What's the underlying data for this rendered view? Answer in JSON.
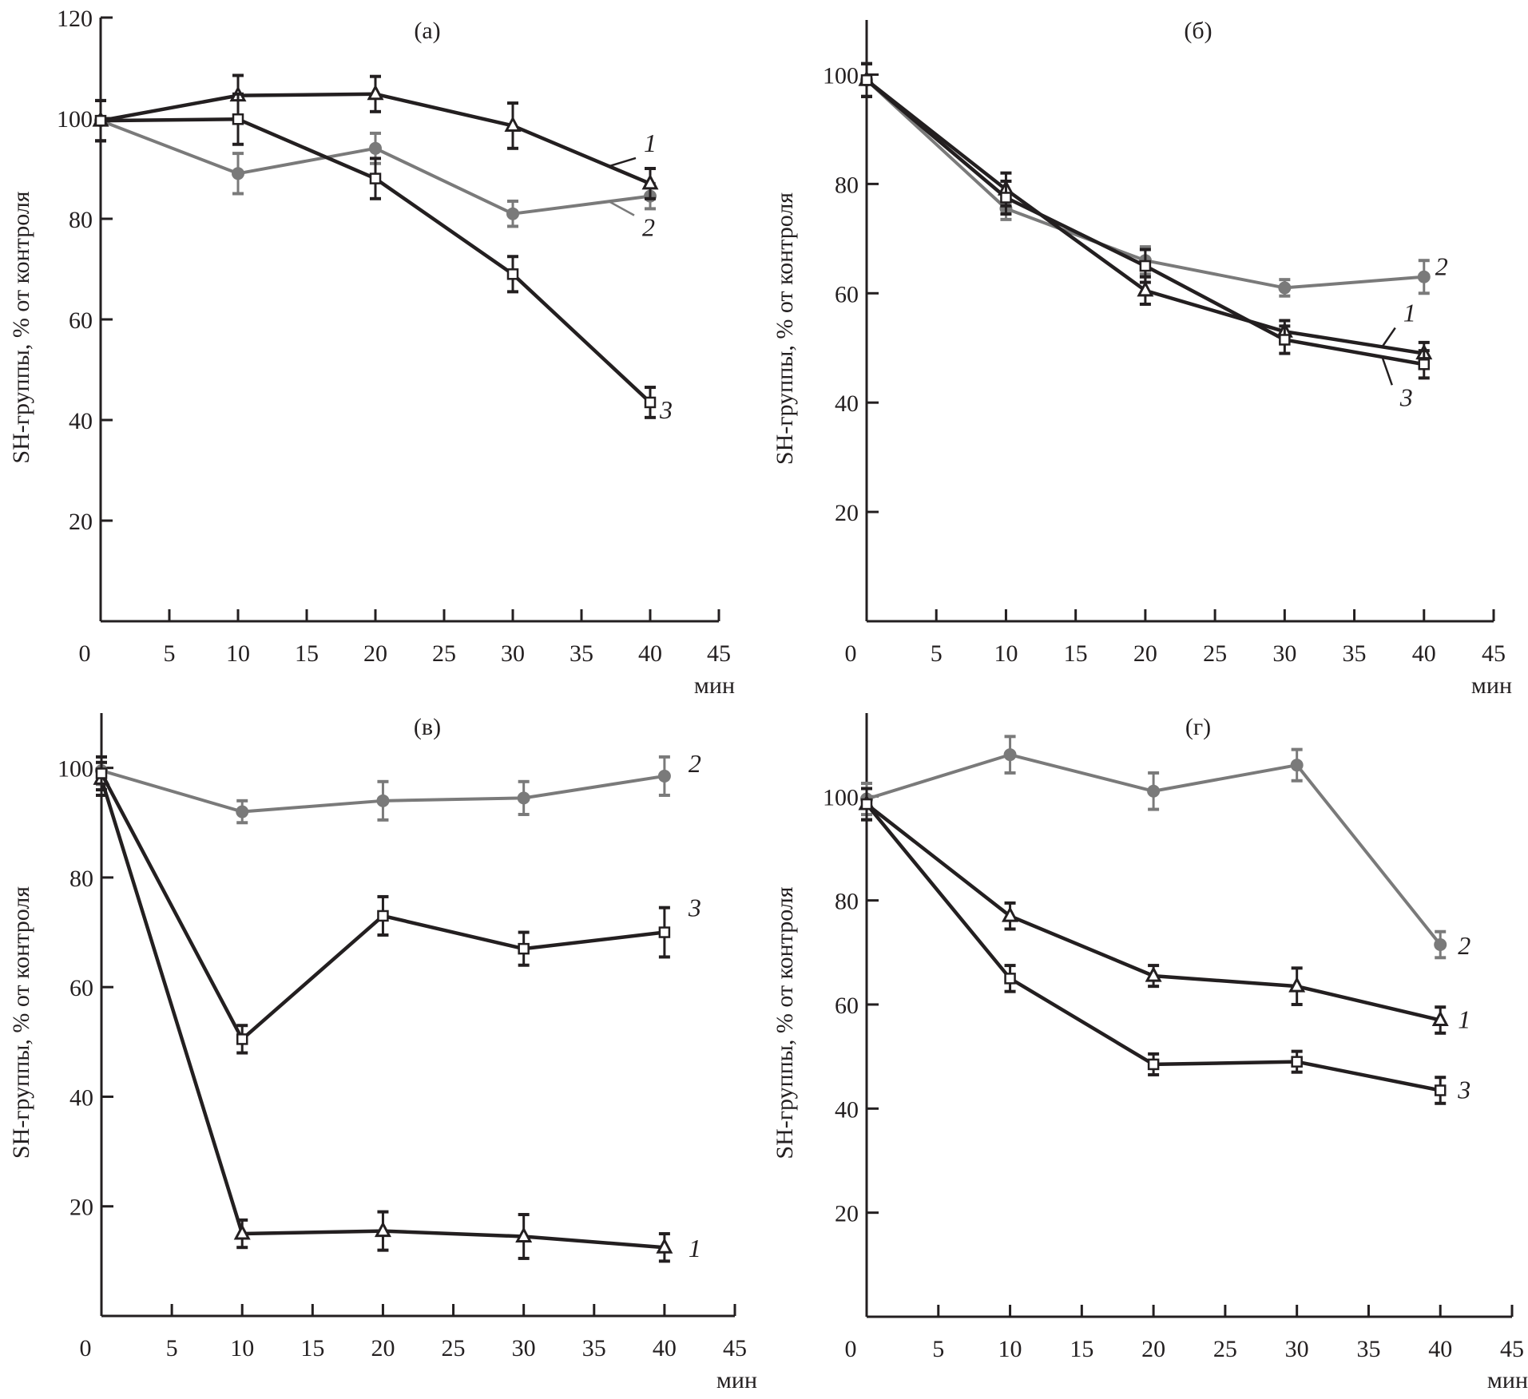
{
  "chart_data": [
    {
      "type": "line",
      "panel": "(а)",
      "title": "(а)",
      "xlabel": "мин",
      "ylabel": "SH-группы, % от контроля",
      "xlim": [
        0,
        45
      ],
      "ylim": [
        0,
        120
      ],
      "xticks": [
        0,
        5,
        10,
        15,
        20,
        25,
        30,
        35,
        40,
        45
      ],
      "yticks": [
        20,
        40,
        60,
        80,
        100,
        120
      ],
      "x": [
        0,
        10,
        20,
        30,
        40
      ],
      "series": [
        {
          "name": "1",
          "marker": "triangle",
          "color": "#231f20",
          "values": [
            99.5,
            104.5,
            104.8,
            98.5,
            87
          ],
          "errors": [
            4,
            4,
            3.5,
            4.5,
            3
          ]
        },
        {
          "name": "2",
          "marker": "diamond",
          "color": "#7a7a7a",
          "values": [
            99.5,
            89,
            94,
            81,
            84.5
          ],
          "errors": [
            4,
            4,
            3,
            2.5,
            2.5
          ]
        },
        {
          "name": "3",
          "marker": "square",
          "color": "#231f20",
          "values": [
            99.5,
            99.8,
            88,
            69,
            43.5
          ],
          "errors": [
            4,
            5,
            4,
            3.5,
            3
          ]
        }
      ]
    },
    {
      "type": "line",
      "panel": "(б)",
      "title": "(б)",
      "xlabel": "мин",
      "ylabel": "SH-группы, % от контроля",
      "xlim": [
        0,
        45
      ],
      "ylim": [
        0,
        110
      ],
      "xticks": [
        0,
        5,
        10,
        15,
        20,
        25,
        30,
        35,
        40,
        45
      ],
      "yticks": [
        20,
        40,
        60,
        80,
        100
      ],
      "x": [
        0,
        10,
        20,
        30,
        40
      ],
      "series": [
        {
          "name": "1",
          "marker": "triangle",
          "color": "#231f20",
          "values": [
            99,
            79,
            60.5,
            53,
            49
          ],
          "errors": [
            3,
            3,
            2.5,
            2,
            2
          ]
        },
        {
          "name": "2",
          "marker": "diamond",
          "color": "#7a7a7a",
          "values": [
            99,
            75.5,
            66,
            61,
            63
          ],
          "errors": [
            3,
            2,
            2.5,
            1.5,
            3
          ]
        },
        {
          "name": "3",
          "marker": "square",
          "color": "#231f20",
          "values": [
            99,
            77.5,
            65,
            51.5,
            47
          ],
          "errors": [
            3,
            3,
            3,
            2.5,
            2.5
          ]
        }
      ]
    },
    {
      "type": "line",
      "panel": "(в)",
      "title": "(в)",
      "xlabel": "мин",
      "ylabel": "SH-группы, % от контроля",
      "xlim": [
        0,
        45
      ],
      "ylim": [
        0,
        110
      ],
      "xticks": [
        0,
        5,
        10,
        15,
        20,
        25,
        30,
        35,
        40,
        45
      ],
      "yticks": [
        20,
        40,
        60,
        80,
        100
      ],
      "x": [
        0,
        10,
        20,
        30,
        40
      ],
      "series": [
        {
          "name": "1",
          "marker": "triangle",
          "color": "#231f20",
          "values": [
            98,
            15,
            15.5,
            14.5,
            12.5
          ],
          "errors": [
            3,
            2.5,
            3.5,
            4,
            2.5
          ]
        },
        {
          "name": "2",
          "marker": "diamond",
          "color": "#7a7a7a",
          "values": [
            99.5,
            92,
            94,
            94.5,
            98.5
          ],
          "errors": [
            2.5,
            2,
            3.5,
            3,
            3.5
          ]
        },
        {
          "name": "3",
          "marker": "square",
          "color": "#231f20",
          "values": [
            99,
            50.5,
            73,
            67,
            70
          ],
          "errors": [
            3,
            2.5,
            3.5,
            3,
            4.5
          ]
        }
      ]
    },
    {
      "type": "line",
      "panel": "(г)",
      "title": "(г)",
      "xlabel": "мин",
      "ylabel": "SH-группы, % от контроля",
      "xlim": [
        0,
        45
      ],
      "ylim": [
        0,
        116
      ],
      "xticks": [
        0,
        5,
        10,
        15,
        20,
        25,
        30,
        35,
        40,
        45
      ],
      "yticks": [
        20,
        40,
        60,
        80,
        100
      ],
      "x": [
        0,
        10,
        20,
        30,
        40
      ],
      "series": [
        {
          "name": "1",
          "marker": "triangle",
          "color": "#231f20",
          "values": [
            98.5,
            77,
            65.5,
            63.5,
            57
          ],
          "errors": [
            3,
            2.5,
            2,
            3.5,
            2.5
          ]
        },
        {
          "name": "2",
          "marker": "diamond",
          "color": "#7a7a7a",
          "values": [
            99.5,
            108,
            101,
            106,
            71.5
          ],
          "errors": [
            3,
            3.5,
            3.5,
            3,
            2.5
          ]
        },
        {
          "name": "3",
          "marker": "square",
          "color": "#231f20",
          "values": [
            98.5,
            65,
            48.5,
            49,
            43.5
          ],
          "errors": [
            3,
            2.5,
            2,
            2,
            2.5
          ]
        }
      ]
    }
  ]
}
